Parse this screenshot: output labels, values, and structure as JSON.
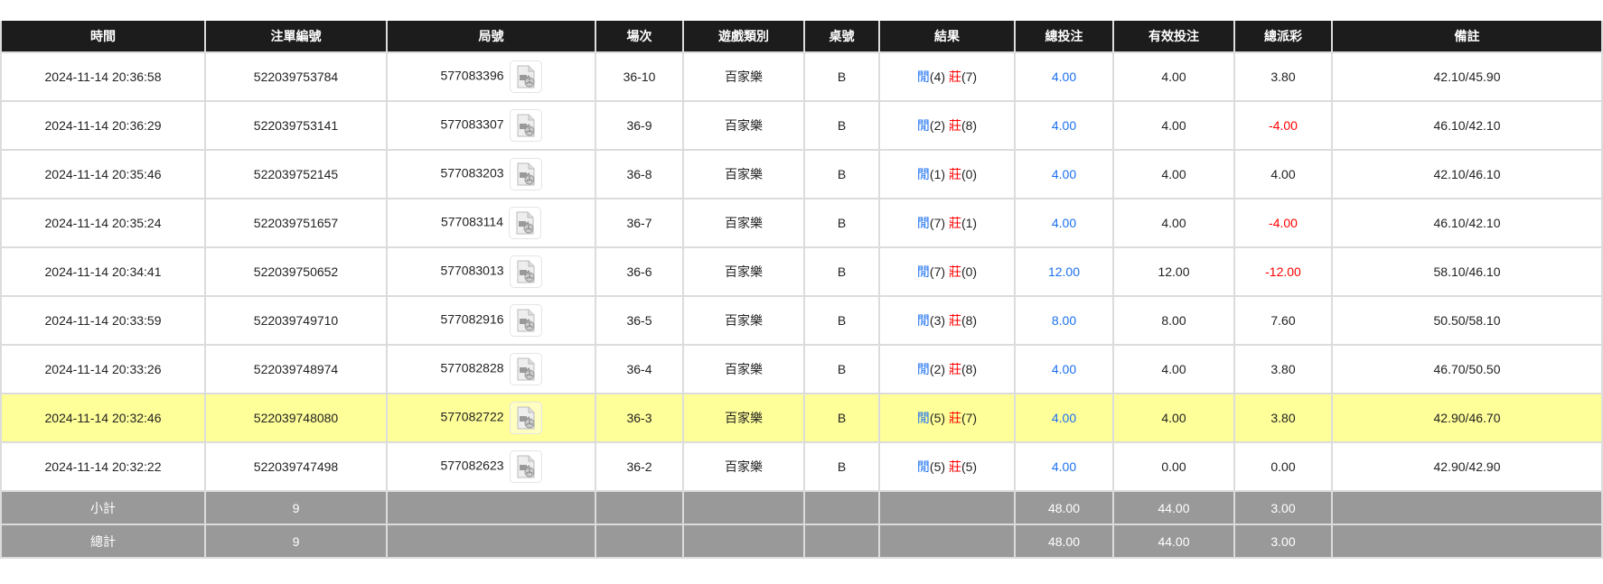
{
  "colors": {
    "header_bg": "#1c1c1c",
    "footer_bg": "#999999",
    "highlight_bg": "#ffff99",
    "player": "#1a6ff0",
    "banker": "#ff0000",
    "negative": "#ff0000",
    "total_bet": "#1a6ff0"
  },
  "headers": [
    "時間",
    "注單編號",
    "局號",
    "場次",
    "遊戲類別",
    "桌號",
    "結果",
    "總投注",
    "有效投注",
    "總派彩",
    "備註"
  ],
  "rows": [
    {
      "time": "2024-11-14 20:36:58",
      "bet_id": "522039753784",
      "round": "577083396",
      "shoe": "36-10",
      "game": "百家樂",
      "table": "B",
      "player_label": "閒",
      "player": "(4)",
      "banker_label": "莊",
      "banker": "(7)",
      "total": "4.00",
      "valid": "4.00",
      "payout": "3.80",
      "note": "42.10/45.90",
      "icon": "video-replay-icon"
    },
    {
      "time": "2024-11-14 20:36:29",
      "bet_id": "522039753141",
      "round": "577083307",
      "shoe": "36-9",
      "game": "百家樂",
      "table": "B",
      "player_label": "閒",
      "player": "(2)",
      "banker_label": "莊",
      "banker": "(8)",
      "total": "4.00",
      "valid": "4.00",
      "payout": "-4.00",
      "note": "46.10/42.10",
      "icon": "video-replay-icon"
    },
    {
      "time": "2024-11-14 20:35:46",
      "bet_id": "522039752145",
      "round": "577083203",
      "shoe": "36-8",
      "game": "百家樂",
      "table": "B",
      "player_label": "閒",
      "player": "(1)",
      "banker_label": "莊",
      "banker": "(0)",
      "total": "4.00",
      "valid": "4.00",
      "payout": "4.00",
      "note": "42.10/46.10",
      "icon": "video-replay-icon"
    },
    {
      "time": "2024-11-14 20:35:24",
      "bet_id": "522039751657",
      "round": "577083114",
      "shoe": "36-7",
      "game": "百家樂",
      "table": "B",
      "player_label": "閒",
      "player": "(7)",
      "banker_label": "莊",
      "banker": "(1)",
      "total": "4.00",
      "valid": "4.00",
      "payout": "-4.00",
      "note": "46.10/42.10",
      "icon": "video-replay-icon"
    },
    {
      "time": "2024-11-14 20:34:41",
      "bet_id": "522039750652",
      "round": "577083013",
      "shoe": "36-6",
      "game": "百家樂",
      "table": "B",
      "player_label": "閒",
      "player": "(7)",
      "banker_label": "莊",
      "banker": "(0)",
      "total": "12.00",
      "valid": "12.00",
      "payout": "-12.00",
      "note": "58.10/46.10",
      "icon": "video-replay-icon"
    },
    {
      "time": "2024-11-14 20:33:59",
      "bet_id": "522039749710",
      "round": "577082916",
      "shoe": "36-5",
      "game": "百家樂",
      "table": "B",
      "player_label": "閒",
      "player": "(3)",
      "banker_label": "莊",
      "banker": "(8)",
      "total": "8.00",
      "valid": "8.00",
      "payout": "7.60",
      "note": "50.50/58.10",
      "icon": "video-replay-icon"
    },
    {
      "time": "2024-11-14 20:33:26",
      "bet_id": "522039748974",
      "round": "577082828",
      "shoe": "36-4",
      "game": "百家樂",
      "table": "B",
      "player_label": "閒",
      "player": "(2)",
      "banker_label": "莊",
      "banker": "(8)",
      "total": "4.00",
      "valid": "4.00",
      "payout": "3.80",
      "note": "46.70/50.50",
      "icon": "video-replay-icon"
    },
    {
      "time": "2024-11-14 20:32:46",
      "bet_id": "522039748080",
      "round": "577082722",
      "shoe": "36-3",
      "game": "百家樂",
      "table": "B",
      "player_label": "閒",
      "player": "(5)",
      "banker_label": "莊",
      "banker": "(7)",
      "total": "4.00",
      "valid": "4.00",
      "payout": "3.80",
      "note": "42.90/46.70",
      "icon": "video-replay-icon",
      "highlighted": true
    },
    {
      "time": "2024-11-14 20:32:22",
      "bet_id": "522039747498",
      "round": "577082623",
      "shoe": "36-2",
      "game": "百家樂",
      "table": "B",
      "player_label": "閒",
      "player": "(5)",
      "banker_label": "莊",
      "banker": "(5)",
      "total": "4.00",
      "valid": "0.00",
      "payout": "0.00",
      "note": "42.90/42.90",
      "icon": "video-replay-icon"
    }
  ],
  "footer": [
    {
      "label": "小計",
      "count": "9",
      "total": "48.00",
      "valid": "44.00",
      "payout": "3.00"
    },
    {
      "label": "總計",
      "count": "9",
      "total": "48.00",
      "valid": "44.00",
      "payout": "3.00"
    }
  ]
}
